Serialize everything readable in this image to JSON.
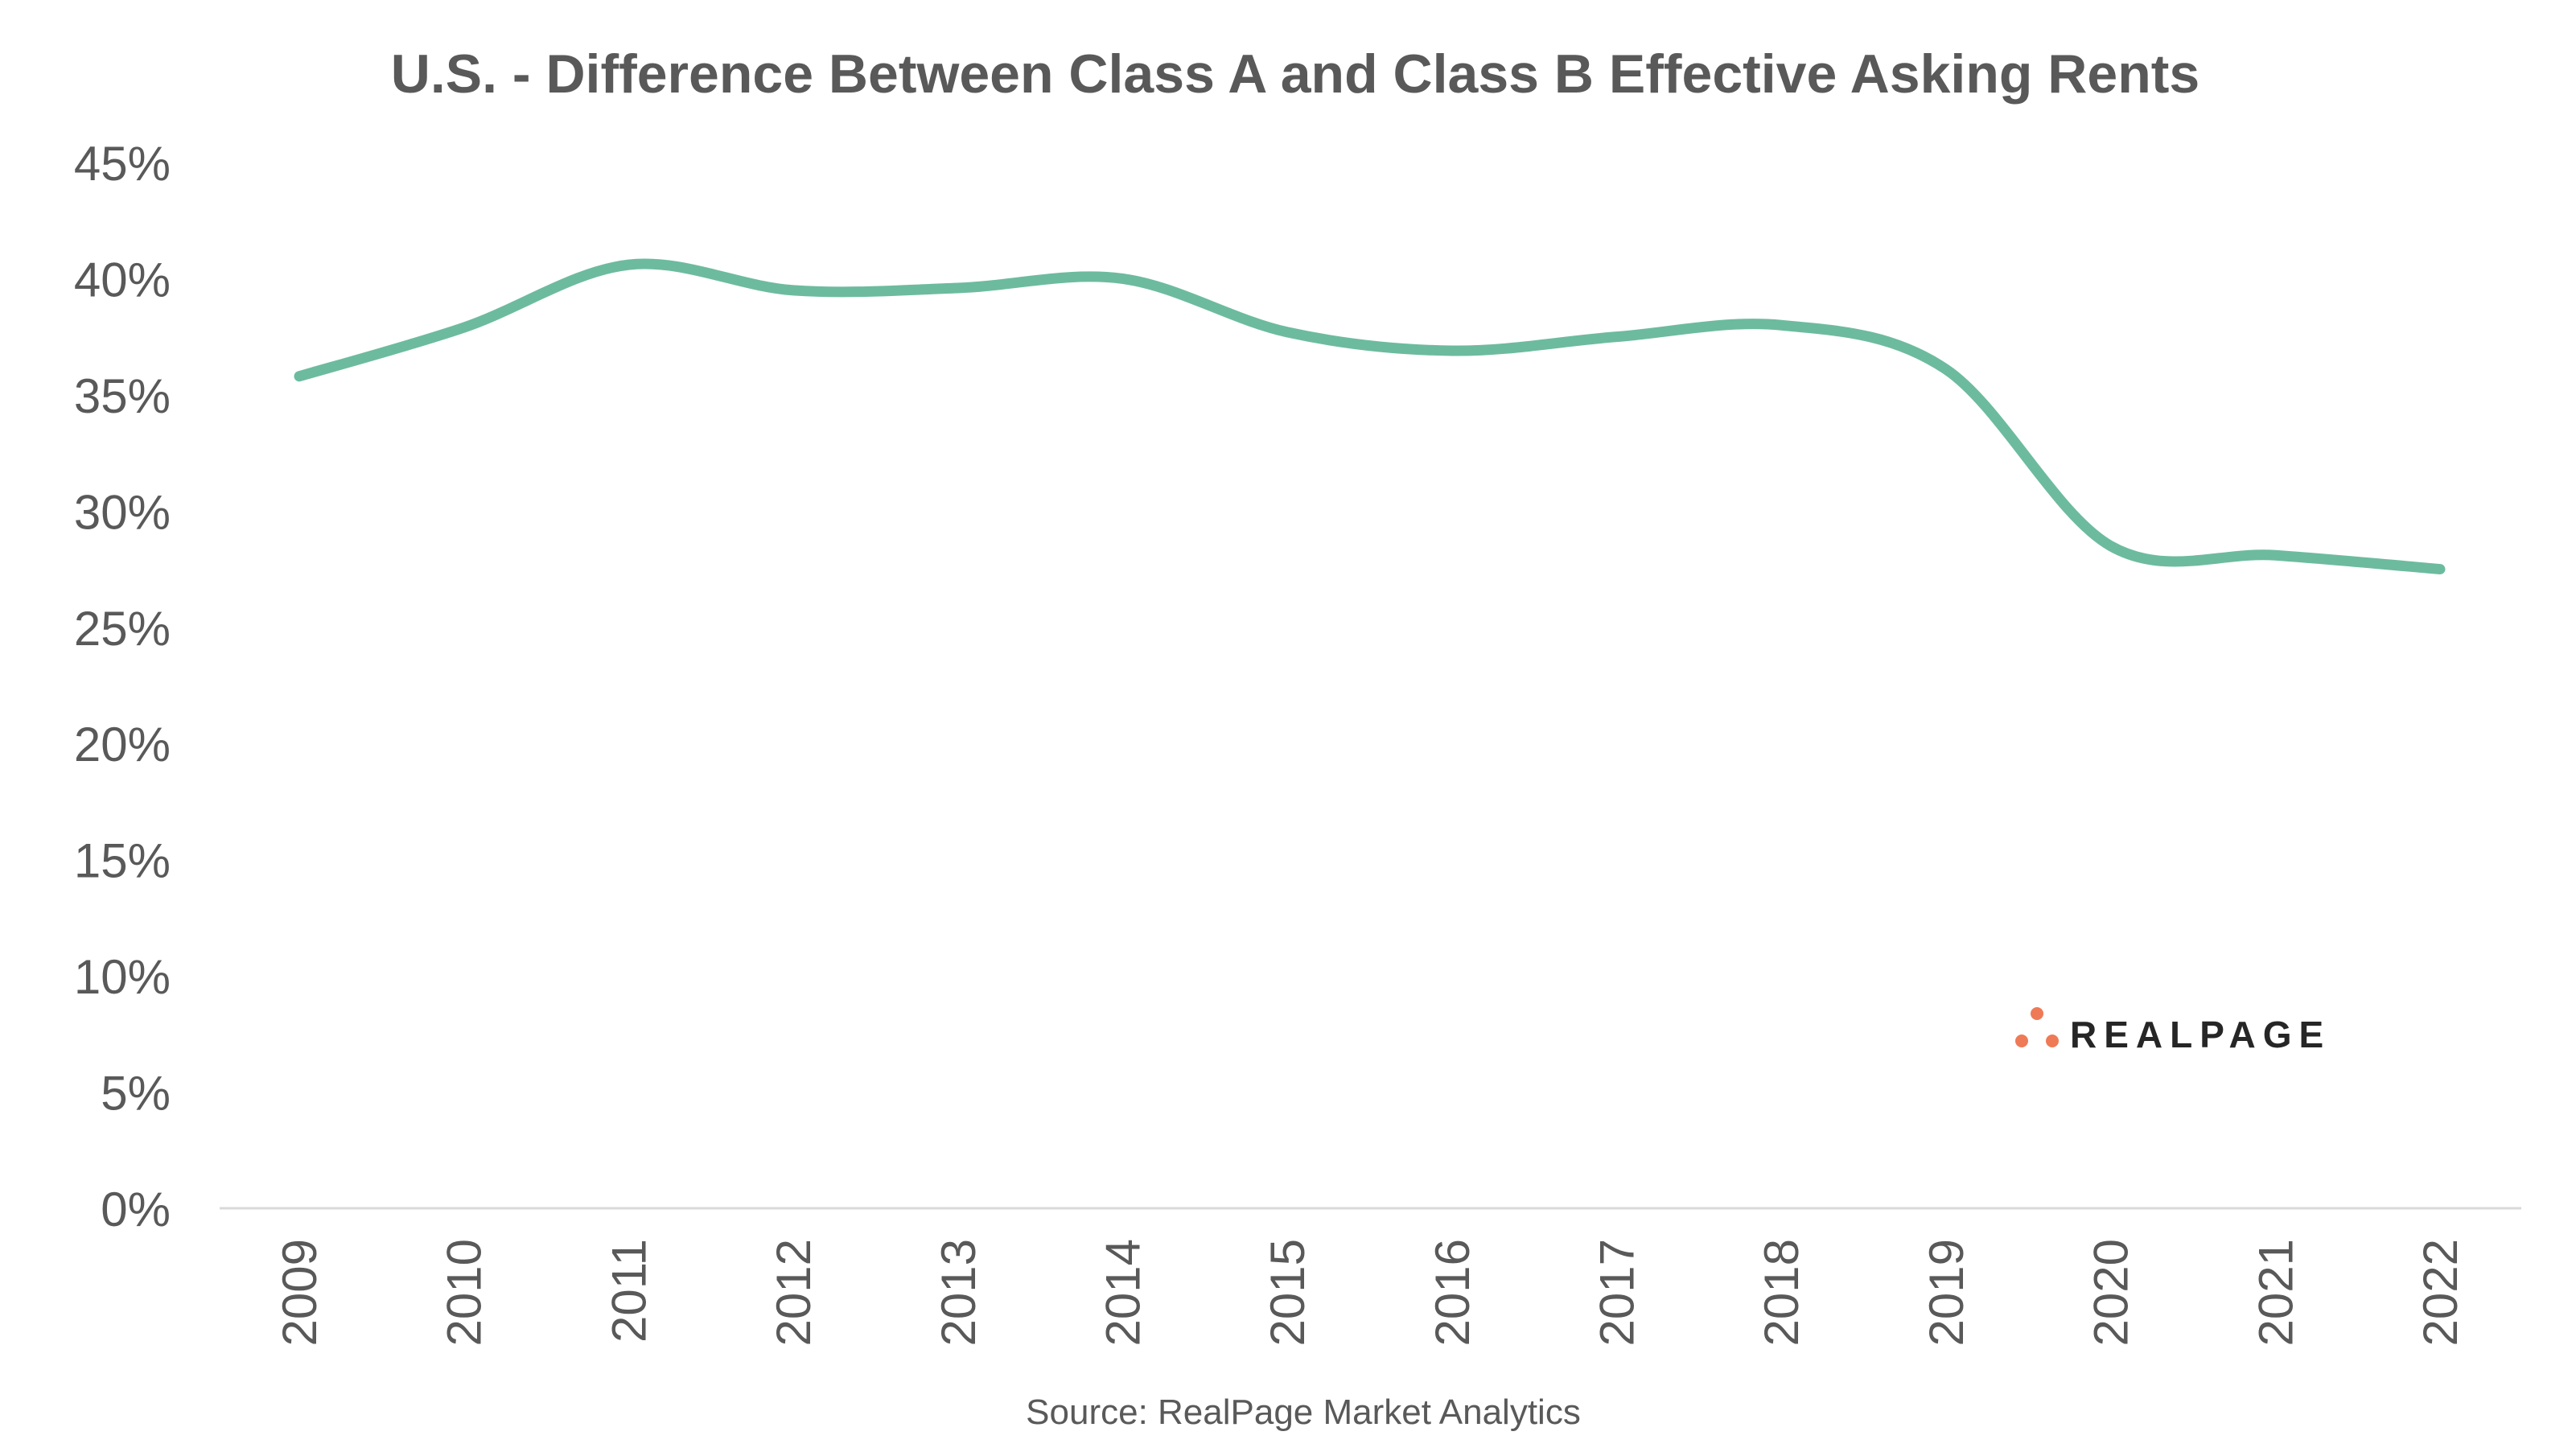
{
  "chart_data": {
    "type": "line",
    "title": "U.S. - Difference Between Class A and Class B Effective Asking Rents",
    "categories": [
      "2009",
      "2010",
      "2011",
      "2012",
      "2013",
      "2014",
      "2015",
      "2016",
      "2017",
      "2018",
      "2019",
      "2020",
      "2021",
      "2022"
    ],
    "series": [
      {
        "values": [
          35.8,
          37.9,
          40.6,
          39.5,
          39.6,
          40.0,
          37.7,
          36.9,
          37.5,
          38.0,
          36.1,
          28.5,
          28.1,
          27.5
        ]
      }
    ],
    "yticks": [
      "0%",
      "5%",
      "10%",
      "15%",
      "20%",
      "25%",
      "30%",
      "35%",
      "40%",
      "45%"
    ],
    "ylim": [
      0,
      45
    ],
    "grid": false,
    "line_color": "#6dbb9f",
    "source": "Source: RealPage Market Analytics",
    "logo": {
      "text": "REALPAGE",
      "dot_color": "#ef7a56"
    }
  }
}
